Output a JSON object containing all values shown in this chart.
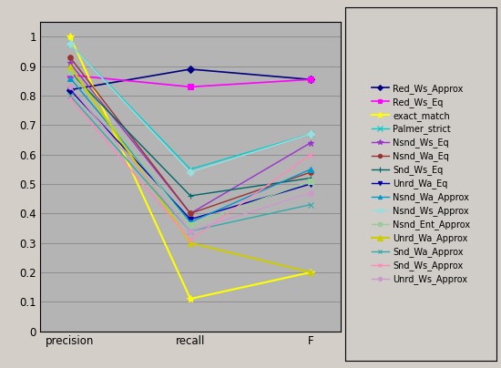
{
  "series": [
    {
      "label": "Red_Ws_Approx",
      "color": "#000080",
      "marker": "D",
      "markersize": 4,
      "lw": 1.2,
      "values": [
        0.82,
        0.89,
        0.855
      ]
    },
    {
      "label": "Red_Ws_Eq",
      "color": "#ff00ff",
      "marker": "s",
      "markersize": 4,
      "lw": 1.2,
      "values": [
        0.87,
        0.83,
        0.855
      ]
    },
    {
      "label": "exact_match",
      "color": "#ffff00",
      "marker": "*",
      "markersize": 6,
      "lw": 1.5,
      "values": [
        1.0,
        0.11,
        0.2
      ]
    },
    {
      "label": "Palmer_strict",
      "color": "#00cccc",
      "marker": "x",
      "markersize": 5,
      "lw": 1.0,
      "values": [
        0.975,
        0.55,
        0.67
      ]
    },
    {
      "label": "Nsnd_Ws_Eq",
      "color": "#9933cc",
      "marker": "*",
      "markersize": 5,
      "lw": 1.0,
      "values": [
        0.91,
        0.4,
        0.64
      ]
    },
    {
      "label": "Nsnd_Wa_Eq",
      "color": "#993333",
      "marker": "o",
      "markersize": 4,
      "lw": 1.0,
      "values": [
        0.93,
        0.4,
        0.54
      ]
    },
    {
      "label": "Snd_Ws_Eq",
      "color": "#006666",
      "marker": "+",
      "markersize": 5,
      "lw": 1.0,
      "values": [
        0.88,
        0.46,
        0.52
      ]
    },
    {
      "label": "Unrd_Wa_Eq",
      "color": "#0000aa",
      "marker": "v",
      "markersize": 4,
      "lw": 1.0,
      "values": [
        0.82,
        0.38,
        0.5
      ]
    },
    {
      "label": "Nsnd_Wa_Approx",
      "color": "#0099cc",
      "marker": "^",
      "markersize": 4,
      "lw": 1.0,
      "values": [
        0.86,
        0.37,
        0.55
      ]
    },
    {
      "label": "Nsnd_Ws_Approx",
      "color": "#99dddd",
      "marker": "D",
      "markersize": 4,
      "lw": 1.0,
      "values": [
        0.975,
        0.54,
        0.67
      ]
    },
    {
      "label": "Nsnd_Ent_Approx",
      "color": "#99cc99",
      "marker": "s",
      "markersize": 4,
      "lw": 1.0,
      "values": [
        0.88,
        0.36,
        0.51
      ]
    },
    {
      "label": "Unrd_Wa_Approx",
      "color": "#cccc00",
      "marker": "^",
      "markersize": 5,
      "lw": 1.5,
      "values": [
        0.9,
        0.3,
        0.2
      ]
    },
    {
      "label": "Snd_Wa_Approx",
      "color": "#33aaaa",
      "marker": "x",
      "markersize": 4,
      "lw": 1.0,
      "values": [
        0.8,
        0.34,
        0.43
      ]
    },
    {
      "label": "Snd_Ws_Approx",
      "color": "#ff88bb",
      "marker": "x",
      "markersize": 4,
      "lw": 1.0,
      "values": [
        0.79,
        0.31,
        0.6
      ]
    },
    {
      "label": "Unrd_Ws_Approx",
      "color": "#cc99cc",
      "marker": "o",
      "markersize": 4,
      "lw": 1.0,
      "values": [
        0.83,
        0.34,
        0.47
      ]
    }
  ],
  "xticks": [
    "precision",
    "recall",
    "F"
  ],
  "ytick_vals": [
    0,
    0.1,
    0.2,
    0.3,
    0.4,
    0.5,
    0.6,
    0.7,
    0.8,
    0.9,
    1
  ],
  "ytick_labels": [
    "0",
    "0.1",
    "0.2",
    "0.3",
    "0.4",
    "0.5",
    "0.6",
    "0.7",
    "0.8",
    "0.9",
    "1"
  ],
  "ylim": [
    0,
    1.05
  ],
  "xlim": [
    -0.25,
    2.25
  ],
  "plot_bg_color": "#b4b4b4",
  "outer_bg_color": "#d4cec8",
  "legend_bg_color": "#d0ccc8",
  "grid_color": "#888888",
  "figsize": [
    5.5,
    4.04
  ],
  "dpi": 100
}
